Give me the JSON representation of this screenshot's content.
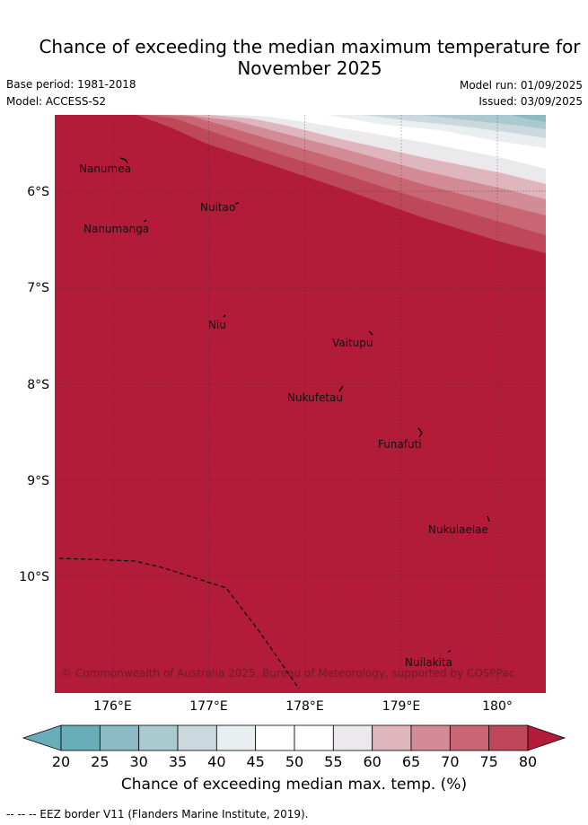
{
  "header": {
    "title_line1": "Chance of exceeding the median maximum temperature for",
    "title_line2": "November 2025",
    "base_period": "Base period: 1981-2018",
    "model": "Model: ACCESS-S2",
    "model_run": "Model run: 01/09/2025",
    "issued": "Issued: 03/09/2025"
  },
  "map": {
    "lat_ticks": [
      "6°S",
      "7°S",
      "8°S",
      "9°S",
      "10°S"
    ],
    "lon_ticks": [
      "176°E",
      "177°E",
      "178°E",
      "179°E",
      "180°"
    ],
    "places": [
      {
        "name": "Nanumea"
      },
      {
        "name": "Nuitao"
      },
      {
        "name": "Nanumanga"
      },
      {
        "name": "Niu"
      },
      {
        "name": "Vaitupu"
      },
      {
        "name": "Nukufetau"
      },
      {
        "name": "Funafuti"
      },
      {
        "name": "Nukulaelae"
      },
      {
        "name": "Nuilakita"
      }
    ],
    "copyright": "© Commonwealth of Australia 2025, Bureau of Meteorology, supported by COSPPac",
    "dominant_category_color": "#b31c38"
  },
  "colorbar": {
    "ticks": [
      "20",
      "25",
      "30",
      "35",
      "40",
      "45",
      "50",
      "55",
      "60",
      "65",
      "70",
      "75",
      "80"
    ],
    "colors": [
      "#69adb8",
      "#8cbac4",
      "#abcacf",
      "#cbd9de",
      "#e9eef1",
      "#ffffff",
      "#ffffff",
      "#ebe9ec",
      "#dfb6bd",
      "#d38b97",
      "#c86773",
      "#be4858",
      "#b31c38"
    ],
    "label": "Chance of exceeding median max. temp. (%)"
  },
  "footer": {
    "legend": "-- -- -- EEZ border V11 (Flanders Marine Institute, 2019)."
  }
}
